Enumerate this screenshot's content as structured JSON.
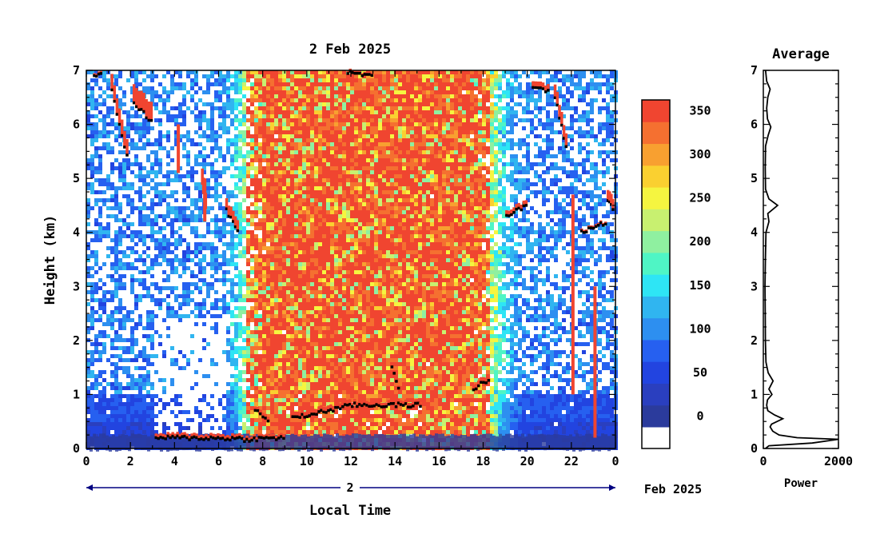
{
  "chart_data": [
    {
      "type": "heatmap",
      "title": "2 Feb 2025",
      "xlabel": "Local Time",
      "ylabel": "Height (km)",
      "x_ticks": [
        "0",
        "2",
        "4",
        "6",
        "8",
        "10",
        "12",
        "14",
        "16",
        "18",
        "20",
        "22",
        "0"
      ],
      "x_range": [
        0,
        24
      ],
      "y_ticks": [
        "0",
        "1",
        "2",
        "3",
        "4",
        "5",
        "6",
        "7"
      ],
      "y_range": [
        0,
        7
      ],
      "date_bar_label": "2",
      "date_suffix": "Feb 2025",
      "colorbar": {
        "ticks": [
          "0",
          "50",
          "100",
          "150",
          "200",
          "250",
          "300",
          "350"
        ],
        "range": [
          0,
          380
        ],
        "levels": [
          0,
          25,
          50,
          75,
          100,
          125,
          150,
          175,
          200,
          225,
          250,
          275,
          300,
          325,
          350,
          375
        ],
        "colors": [
          "#ffffff",
          "#2b3b9c",
          "#2a3fbf",
          "#2244e0",
          "#2660f0",
          "#2d8ff0",
          "#30b5f0",
          "#2ee5f5",
          "#4ff5c5",
          "#8ff0a0",
          "#c8f070",
          "#f5f540",
          "#fad030",
          "#f8a030",
          "#f57030",
          "#f04530"
        ]
      },
      "cloud_color": "#f04530",
      "cloud_base_color": "#000000"
    },
    {
      "type": "line",
      "title": "Average",
      "xlabel": "Power",
      "x_ticks": [
        "0",
        "2000"
      ],
      "x_range": [
        0,
        2000
      ],
      "y_ticks": [
        "0",
        "1",
        "2",
        "3",
        "4",
        "5",
        "6",
        "7"
      ],
      "y_range": [
        0,
        7
      ],
      "profile": [
        [
          60,
          0.0
        ],
        [
          150,
          0.05
        ],
        [
          1300,
          0.1
        ],
        [
          2000,
          0.17
        ],
        [
          900,
          0.2
        ],
        [
          420,
          0.25
        ],
        [
          250,
          0.32
        ],
        [
          180,
          0.4
        ],
        [
          220,
          0.45
        ],
        [
          520,
          0.55
        ],
        [
          300,
          0.62
        ],
        [
          120,
          0.7
        ],
        [
          90,
          0.8
        ],
        [
          110,
          0.9
        ],
        [
          230,
          1.0
        ],
        [
          150,
          1.1
        ],
        [
          260,
          1.25
        ],
        [
          130,
          1.4
        ],
        [
          70,
          1.6
        ],
        [
          55,
          2.0
        ],
        [
          50,
          2.5
        ],
        [
          45,
          3.0
        ],
        [
          55,
          3.5
        ],
        [
          70,
          4.0
        ],
        [
          150,
          4.2
        ],
        [
          120,
          4.35
        ],
        [
          380,
          4.5
        ],
        [
          150,
          4.62
        ],
        [
          60,
          4.8
        ],
        [
          50,
          5.2
        ],
        [
          60,
          5.6
        ],
        [
          130,
          5.8
        ],
        [
          200,
          5.95
        ],
        [
          110,
          6.1
        ],
        [
          90,
          6.3
        ],
        [
          120,
          6.5
        ],
        [
          180,
          6.65
        ],
        [
          90,
          6.8
        ],
        [
          60,
          7.0
        ]
      ]
    }
  ]
}
